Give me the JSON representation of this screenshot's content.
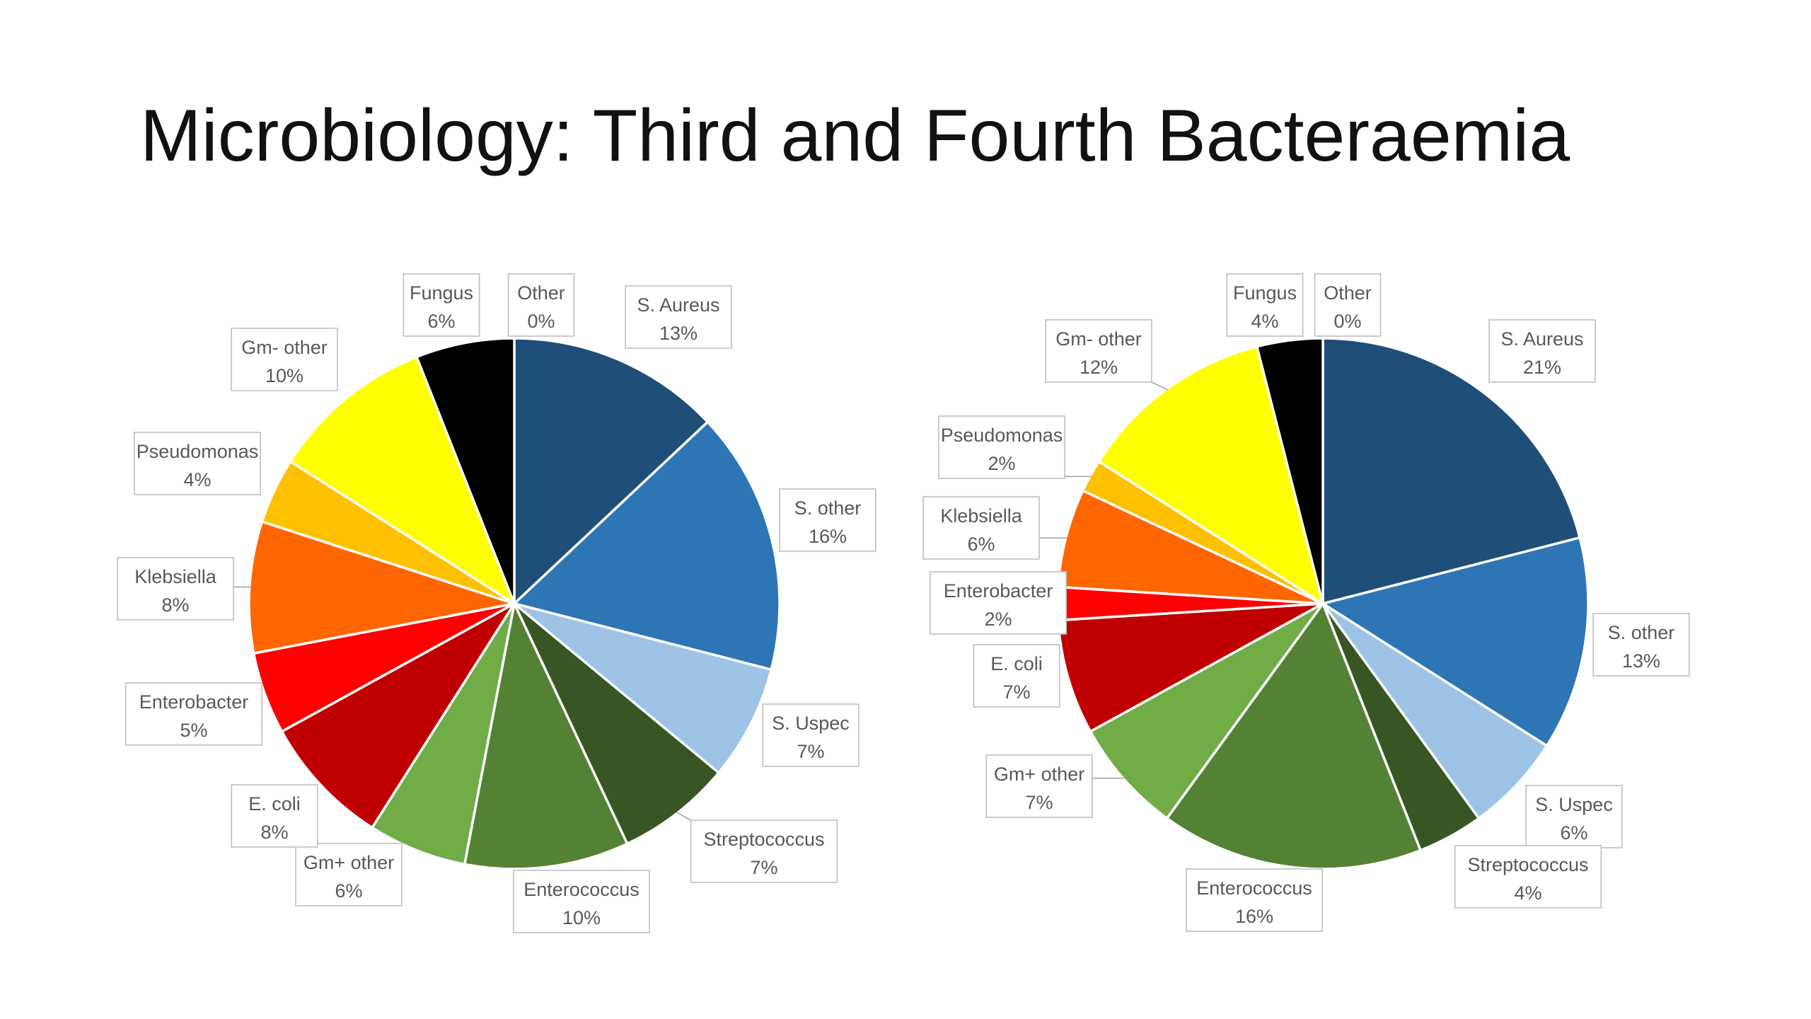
{
  "title": "Microbiology: Third and Fourth Bacteraemia",
  "chart_data": [
    {
      "type": "pie",
      "title": "",
      "slices": [
        {
          "name": "S. Aureus",
          "value": 13,
          "pct_label": "13%",
          "color": "#1f4e79"
        },
        {
          "name": "S. other",
          "value": 16,
          "pct_label": "16%",
          "color": "#2e75b6"
        },
        {
          "name": "S. Uspec",
          "value": 7,
          "pct_label": "7%",
          "color": "#9dc3e6"
        },
        {
          "name": "Streptococcus",
          "value": 7,
          "pct_label": "7%",
          "color": "#375623"
        },
        {
          "name": "Enterococcus",
          "value": 10,
          "pct_label": "10%",
          "color": "#548235"
        },
        {
          "name": "Gm+ other",
          "value": 6,
          "pct_label": "6%",
          "color": "#70ad47"
        },
        {
          "name": "E. coli",
          "value": 8,
          "pct_label": "8%",
          "color": "#c00000"
        },
        {
          "name": "Enterobacter",
          "value": 5,
          "pct_label": "5%",
          "color": "#ff0000"
        },
        {
          "name": "Klebsiella",
          "value": 8,
          "pct_label": "8%",
          "color": "#ff6600"
        },
        {
          "name": "Pseudomonas",
          "value": 4,
          "pct_label": "4%",
          "color": "#ffc000"
        },
        {
          "name": "Gm- other",
          "value": 10,
          "pct_label": "10%",
          "color": "#ffff00"
        },
        {
          "name": "Fungus",
          "value": 6,
          "pct_label": "6%",
          "color": "#000000"
        },
        {
          "name": "Other",
          "value": 0,
          "pct_label": "0%",
          "color": "#7f7f7f"
        }
      ]
    },
    {
      "type": "pie",
      "title": "",
      "slices": [
        {
          "name": "S. Aureus",
          "value": 21,
          "pct_label": "21%",
          "color": "#1f4e79"
        },
        {
          "name": "S. other",
          "value": 13,
          "pct_label": "13%",
          "color": "#2e75b6"
        },
        {
          "name": "S. Uspec",
          "value": 6,
          "pct_label": "6%",
          "color": "#9dc3e6"
        },
        {
          "name": "Streptococcus",
          "value": 4,
          "pct_label": "4%",
          "color": "#375623"
        },
        {
          "name": "Enterococcus",
          "value": 16,
          "pct_label": "16%",
          "color": "#548235"
        },
        {
          "name": "Gm+ other",
          "value": 7,
          "pct_label": "7%",
          "color": "#70ad47"
        },
        {
          "name": "E. coli",
          "value": 7,
          "pct_label": "7%",
          "color": "#c00000"
        },
        {
          "name": "Enterobacter",
          "value": 2,
          "pct_label": "2%",
          "color": "#ff0000"
        },
        {
          "name": "Klebsiella",
          "value": 6,
          "pct_label": "6%",
          "color": "#ff6600"
        },
        {
          "name": "Pseudomonas",
          "value": 2,
          "pct_label": "2%",
          "color": "#ffc000"
        },
        {
          "name": "Gm- other",
          "value": 12,
          "pct_label": "12%",
          "color": "#ffff00"
        },
        {
          "name": "Fungus",
          "value": 4,
          "pct_label": "4%",
          "color": "#000000"
        },
        {
          "name": "Other",
          "value": 0,
          "pct_label": "0%",
          "color": "#7f7f7f"
        }
      ]
    }
  ]
}
